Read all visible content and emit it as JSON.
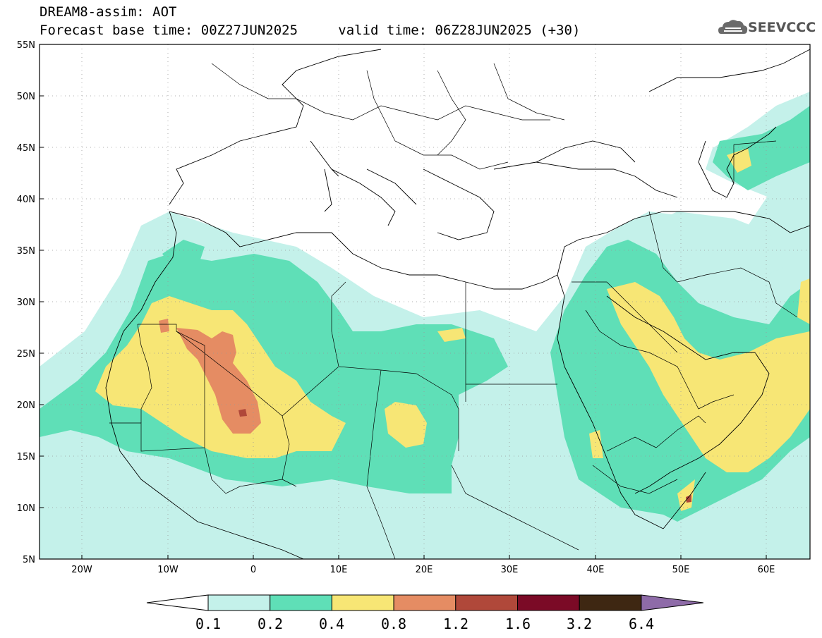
{
  "title": {
    "line1": "DREAM8-assim: AOT",
    "base_time_label": "Forecast base time: 00Z27JUN2025",
    "valid_time_label": "valid time: 06Z28JUN2025 (+30)"
  },
  "logo": {
    "text": "SEEVCCC",
    "icon": "cloud-icon"
  },
  "map": {
    "lon_range": [
      -25,
      65
    ],
    "lat_range": [
      5,
      55
    ],
    "lat_ticks": [
      "55N",
      "50N",
      "45N",
      "40N",
      "35N",
      "30N",
      "25N",
      "20N",
      "15N",
      "10N",
      "5N"
    ],
    "lon_ticks": [
      "20W",
      "10W",
      "0",
      "10E",
      "20E",
      "30E",
      "40E",
      "50E",
      "60E"
    ]
  },
  "colorbar": {
    "levels": [
      "0.1",
      "0.2",
      "0.4",
      "0.8",
      "1.2",
      "1.6",
      "3.2",
      "6.4"
    ],
    "colors": [
      "#ffffff",
      "#c4f1ea",
      "#5fdfb7",
      "#f7e675",
      "#e58c63",
      "#b0483a",
      "#7b0a26",
      "#3e2712",
      "#8e6ba8"
    ]
  }
}
